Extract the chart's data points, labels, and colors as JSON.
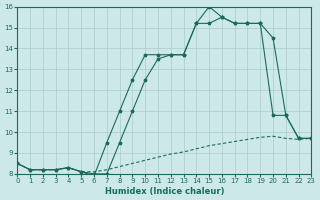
{
  "xlabel": "Humidex (Indice chaleur)",
  "background_color": "#cce8e8",
  "grid_color": "#aacccc",
  "line_color": "#1a6b5a",
  "xlim": [
    0,
    23
  ],
  "ylim": [
    8,
    16
  ],
  "yticks": [
    8,
    9,
    10,
    11,
    12,
    13,
    14,
    15,
    16
  ],
  "xticks": [
    0,
    1,
    2,
    3,
    4,
    5,
    6,
    7,
    8,
    9,
    10,
    11,
    12,
    13,
    14,
    15,
    16,
    17,
    18,
    19,
    20,
    21,
    22,
    23
  ],
  "line1_x": [
    0,
    1,
    2,
    3,
    4,
    5,
    6,
    7,
    8,
    9,
    10,
    11,
    12,
    13,
    14,
    15,
    16,
    17,
    18,
    19,
    20,
    21,
    22,
    23
  ],
  "line1_y": [
    8.5,
    8.2,
    8.2,
    8.2,
    8.3,
    8.1,
    8.0,
    8.0,
    9.5,
    11.0,
    12.5,
    13.5,
    13.7,
    13.7,
    15.2,
    15.2,
    15.5,
    15.2,
    15.2,
    15.2,
    14.5,
    10.8,
    9.7,
    9.7
  ],
  "line2_x": [
    0,
    1,
    2,
    3,
    4,
    5,
    6,
    7,
    8,
    9,
    10,
    11,
    12,
    13,
    14,
    15,
    16,
    17,
    18,
    19,
    20,
    21,
    22,
    23
  ],
  "line2_y": [
    8.5,
    8.2,
    8.2,
    8.2,
    8.3,
    8.1,
    7.9,
    9.5,
    11.0,
    12.5,
    13.7,
    13.7,
    13.7,
    13.7,
    15.2,
    16.0,
    15.5,
    15.2,
    15.2,
    15.2,
    10.8,
    10.8,
    9.7,
    9.7
  ],
  "line3_x": [
    0,
    1,
    2,
    3,
    4,
    5,
    6,
    7,
    8,
    9,
    10,
    11,
    12,
    13,
    14,
    15,
    16,
    17,
    18,
    19,
    20,
    21,
    22,
    23
  ],
  "line3_y": [
    8.5,
    8.2,
    8.2,
    8.2,
    8.3,
    8.1,
    8.1,
    8.2,
    8.35,
    8.5,
    8.65,
    8.8,
    8.95,
    9.05,
    9.2,
    9.35,
    9.45,
    9.55,
    9.65,
    9.75,
    9.8,
    9.7,
    9.65,
    9.7
  ]
}
